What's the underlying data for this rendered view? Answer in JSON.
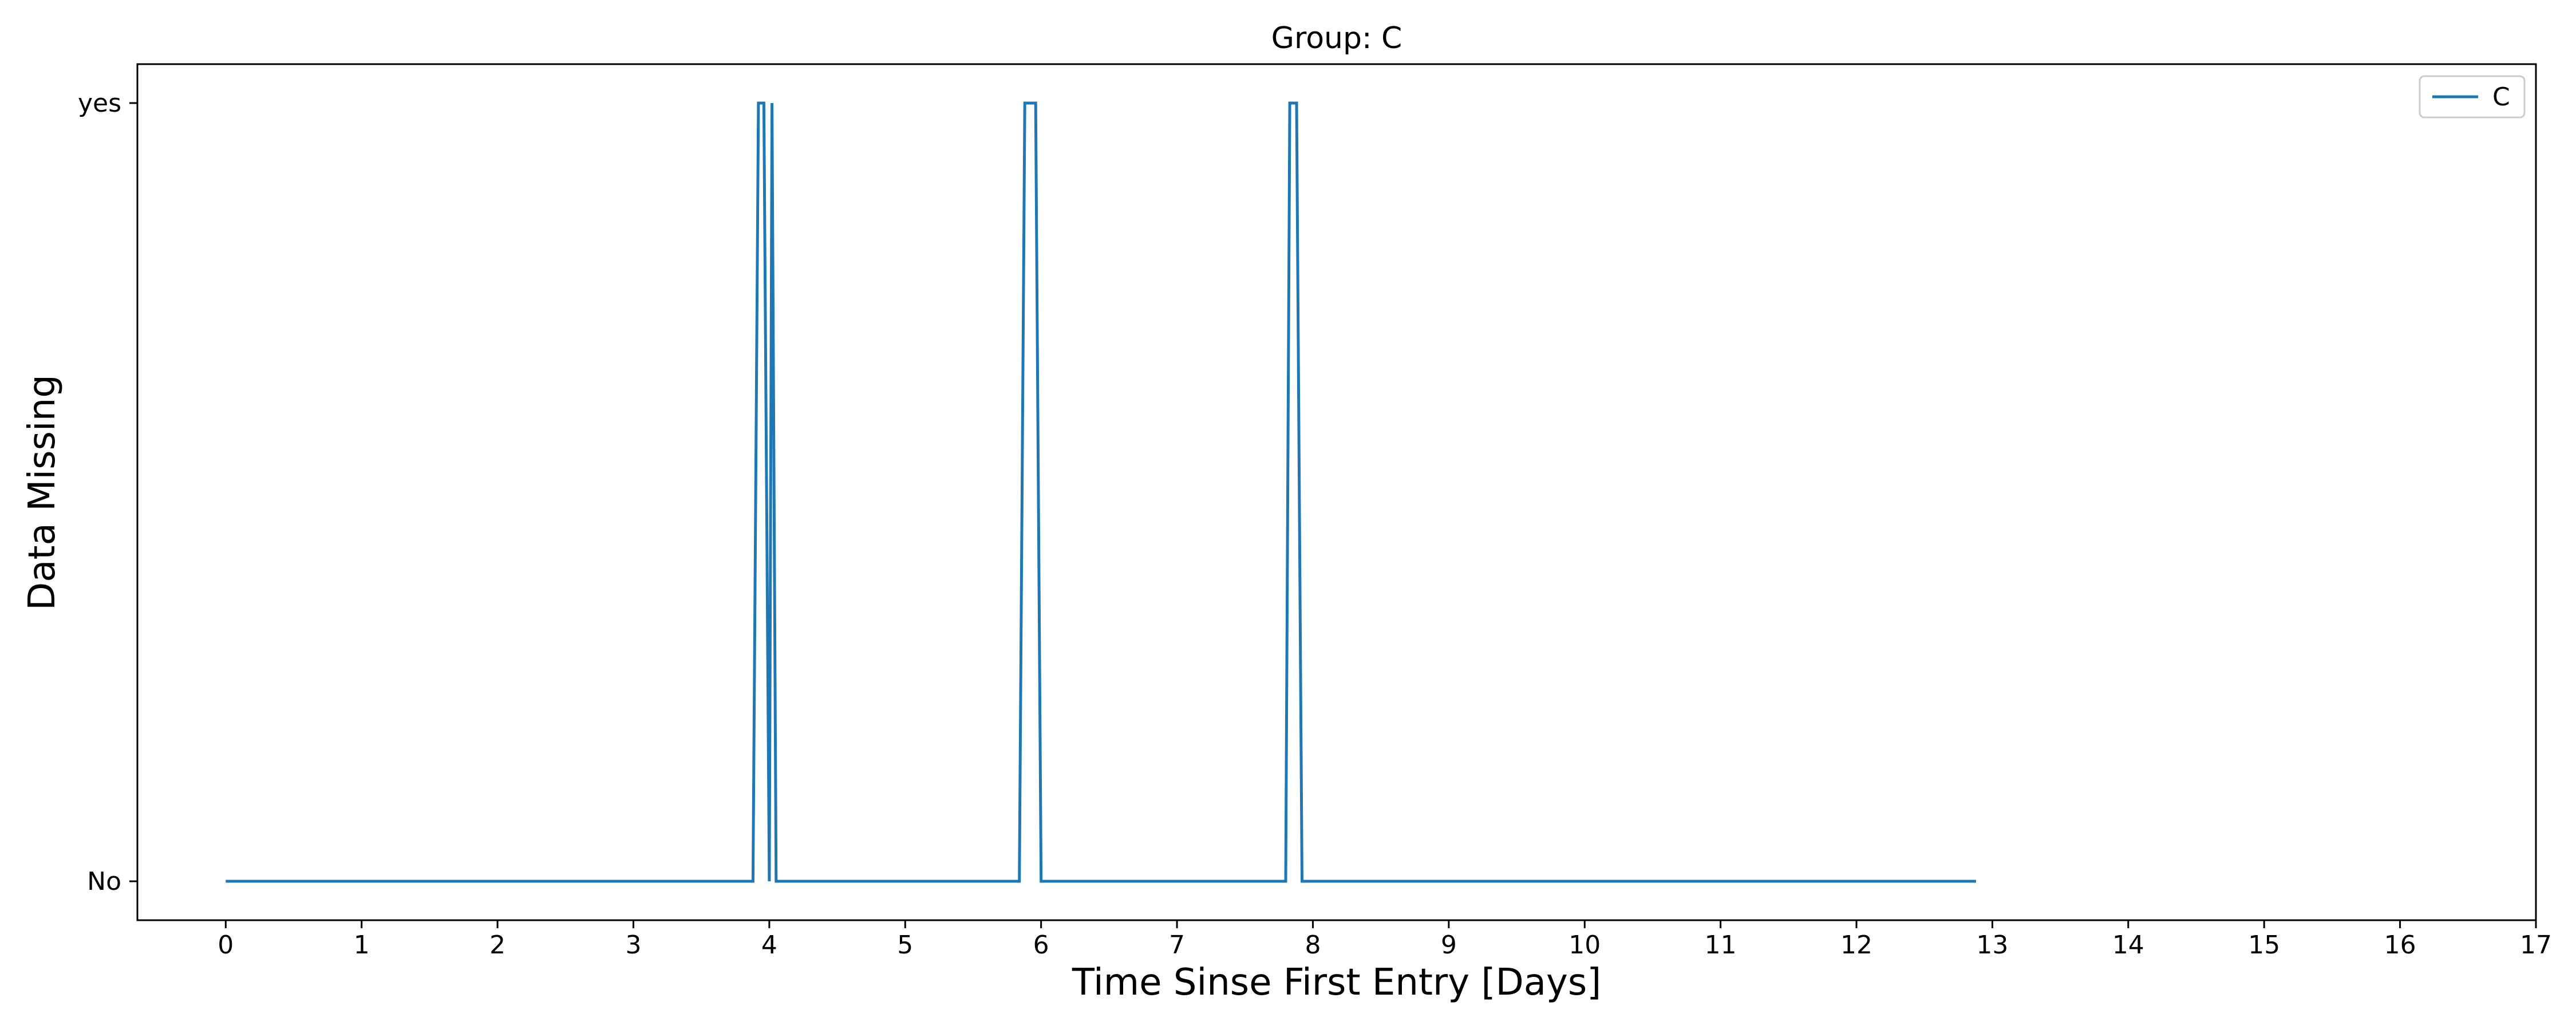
{
  "chart_data": {
    "type": "line",
    "title": "Group: C",
    "xlabel": "Time Sinse First Entry [Days]",
    "ylabel": "Data Missing",
    "xlim": [
      -0.65,
      17
    ],
    "xticks": [
      0,
      1,
      2,
      3,
      4,
      5,
      6,
      7,
      8,
      9,
      10,
      11,
      12,
      13,
      14,
      15,
      16,
      17
    ],
    "ylim": [
      -0.05,
      1.05
    ],
    "yticks": [
      {
        "value": 0,
        "label": "No"
      },
      {
        "value": 1,
        "label": "yes"
      }
    ],
    "grid": false,
    "legend": {
      "position": "top-right",
      "entries": [
        "C"
      ]
    },
    "series": [
      {
        "name": "C",
        "color": "#1f77b4",
        "x": [
          0,
          3.88,
          3.92,
          3.96,
          4.0,
          4.02,
          4.05,
          5.84,
          5.88,
          5.96,
          6.0,
          7.8,
          7.83,
          7.88,
          7.92,
          12.88
        ],
        "y": [
          0,
          0,
          1,
          1,
          0,
          1,
          0,
          0,
          1,
          1,
          0,
          0,
          1,
          1,
          0,
          0
        ]
      }
    ]
  }
}
